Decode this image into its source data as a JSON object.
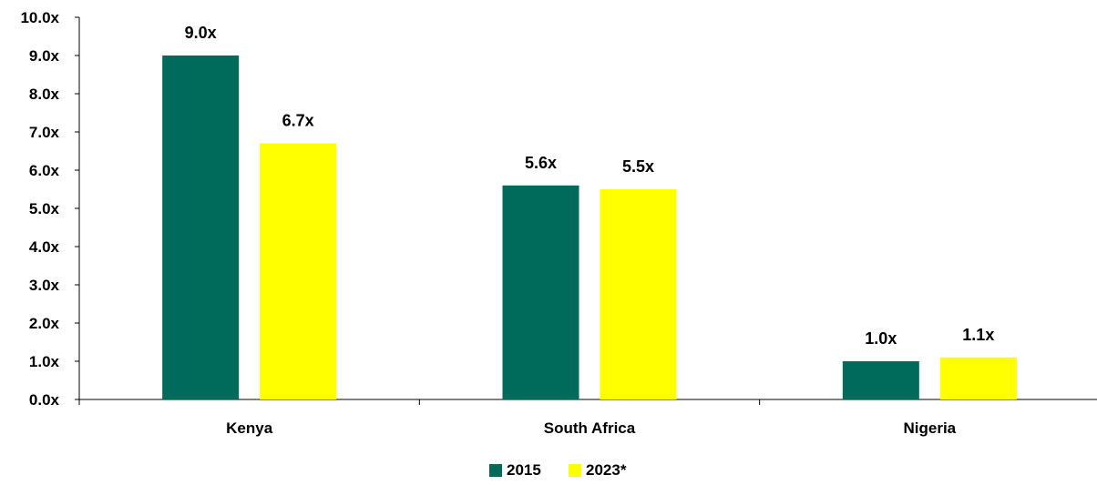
{
  "chart_data": {
    "type": "bar",
    "categories": [
      "Kenya",
      "South Africa",
      "Nigeria"
    ],
    "series": [
      {
        "name": "2015",
        "values": [
          9.0,
          5.6,
          1.0
        ],
        "labels": [
          "9.0x",
          "5.6x",
          "1.0x"
        ],
        "color": "#006B5B"
      },
      {
        "name": "2023*",
        "values": [
          6.7,
          5.5,
          1.1
        ],
        "labels": [
          "6.7x",
          "5.5x",
          "1.1x"
        ],
        "color": "#FFFF00"
      }
    ],
    "title": "",
    "xlabel": "",
    "ylabel": "",
    "ylim": [
      0,
      10
    ],
    "yticks": [
      "0.0x",
      "1.0x",
      "2.0x",
      "3.0x",
      "4.0x",
      "5.0x",
      "6.0x",
      "7.0x",
      "8.0x",
      "9.0x",
      "10.0x"
    ],
    "grid": false,
    "legend": "bottom-center"
  }
}
